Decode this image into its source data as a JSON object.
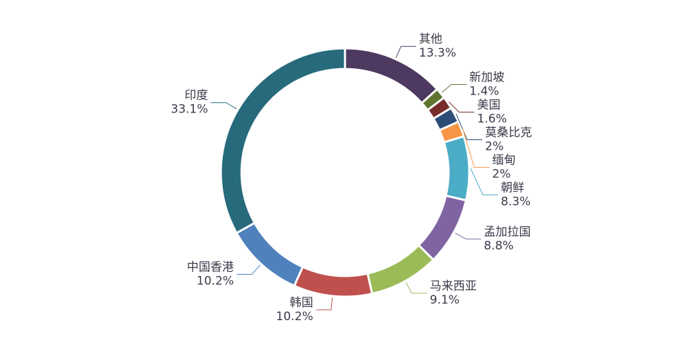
{
  "chart_data": {
    "type": "donut",
    "categories": [
      "其他",
      "新加坡",
      "美国",
      "莫桑比克",
      "缅甸",
      "朝鲜",
      "孟加拉国",
      "马来西亚",
      "韩国",
      "中国香港",
      "印度"
    ],
    "values": [
      13.3,
      1.4,
      1.6,
      2,
      2,
      8.3,
      8.8,
      9.1,
      10.2,
      10.2,
      33.1
    ],
    "value_labels": [
      "13.3%",
      "1.4%",
      "1.6%",
      "2%",
      "2%",
      "8.3%",
      "8.8%",
      "9.1%",
      "10.2%",
      "10.2%",
      "33.1%"
    ],
    "colors": [
      "#4e3a60",
      "#5f7530",
      "#772c2a",
      "#2c4d75",
      "#f79646",
      "#4bacc6",
      "#8064a2",
      "#9bbb59",
      "#c0504d",
      "#4f81bd",
      "#276a7c"
    ]
  }
}
